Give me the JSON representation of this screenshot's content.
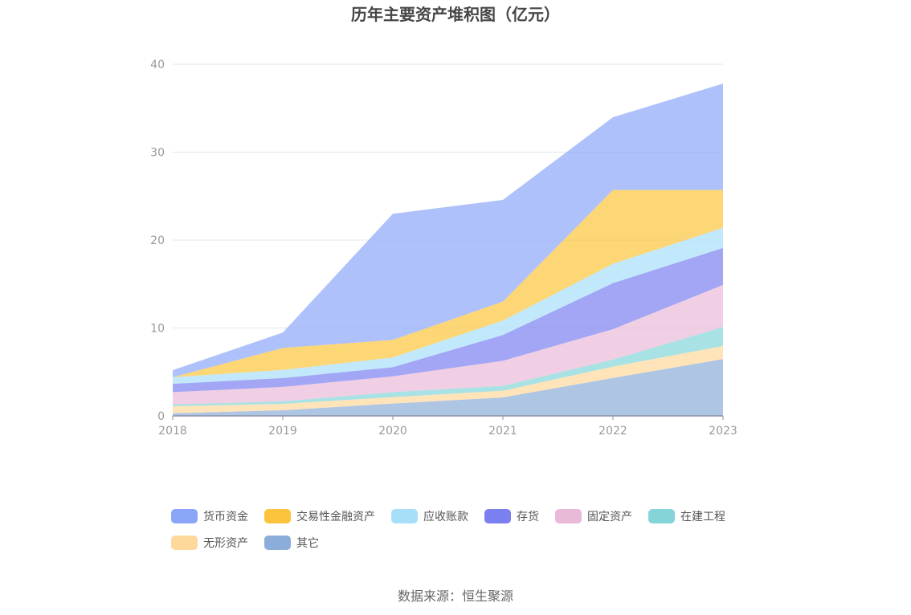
{
  "chart_data": {
    "type": "area",
    "stacked": true,
    "title": "历年主要资产堆积图（亿元）",
    "xlabel": "",
    "ylabel": "",
    "categories": [
      "2018",
      "2019",
      "2020",
      "2021",
      "2022",
      "2023"
    ],
    "ylim": [
      0,
      40
    ],
    "yticks": [
      0,
      10,
      20,
      30,
      40
    ],
    "grid": true,
    "legend_position": "bottom",
    "series": [
      {
        "name": "其它",
        "color": "#8cadd9",
        "values": [
          0.3,
          0.64,
          1.4,
          2.1,
          4.32,
          6.46
        ]
      },
      {
        "name": "无形资产",
        "color": "#fdd89a",
        "values": [
          0.8,
          0.73,
          0.73,
          0.76,
          1.28,
          1.49
        ]
      },
      {
        "name": "在建工程",
        "color": "#85d5d8",
        "values": [
          0.2,
          0.28,
          0.58,
          0.55,
          0.82,
          2.15
        ]
      },
      {
        "name": "固定资产",
        "color": "#e9b9d8",
        "values": [
          1.4,
          1.65,
          1.79,
          2.86,
          3.44,
          4.8
        ]
      },
      {
        "name": "存货",
        "color": "#7b80f0",
        "values": [
          0.95,
          1.0,
          1.04,
          2.93,
          5.24,
          4.2
        ]
      },
      {
        "name": "应收账款",
        "color": "#a7dff9",
        "values": [
          0.75,
          0.93,
          1.1,
          1.64,
          2.2,
          2.3
        ]
      },
      {
        "name": "交易性金融资产",
        "color": "#fcc43c",
        "values": [
          0,
          2.5,
          2.0,
          2.16,
          8.4,
          4.3
        ]
      },
      {
        "name": "货币资金",
        "color": "#8ba6f9",
        "values": [
          0.8,
          1.75,
          14.35,
          11.57,
          8.27,
          12.1
        ]
      }
    ],
    "legend_order": [
      "货币资金",
      "交易性金融资产",
      "应收账款",
      "存货",
      "固定资产",
      "在建工程",
      "无形资产",
      "其它"
    ]
  },
  "source": "数据来源：恒生聚源"
}
